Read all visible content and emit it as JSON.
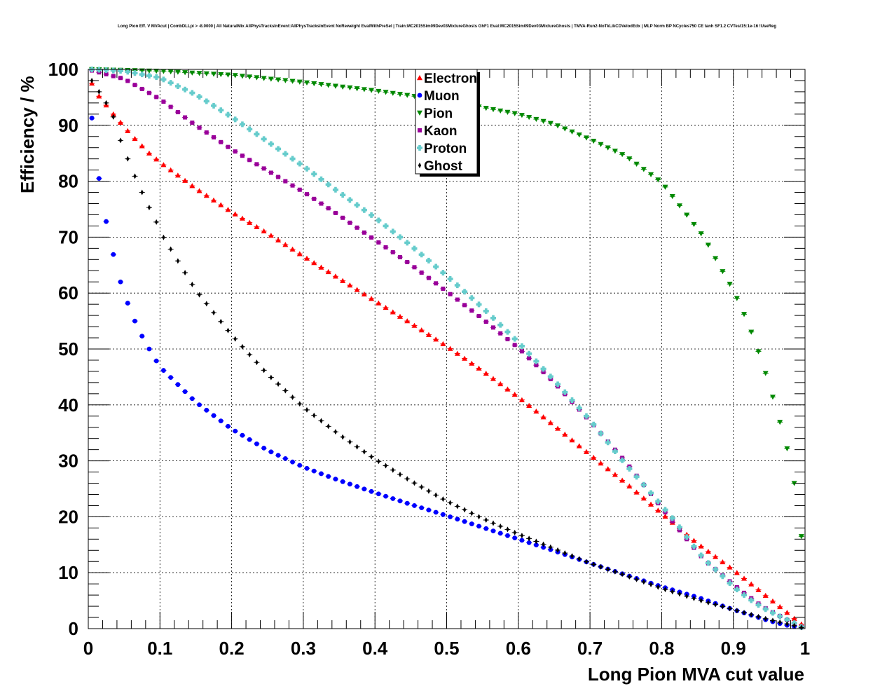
{
  "chart_data": {
    "type": "scatter",
    "title": "Long Pion Eff. V MVAcut | CombDLLpi > -8.0000 | All NaturalMix AllPhysTracksInEvent:AllPhysTracksInEvent NoReweight EvalWithPreSel | Train:MC2015Sim09Dev03MixtureGhosts GhF1 Eval:MC2015Sim09Dev03MixtureGhosts | TMVA-Run2-NoTkLikCDVelodEdx | MLP Norm BP NCycles750 CE tanh SF1.2 CVTest15:1e-16 !UseReg",
    "xlabel": "Long Pion MVA cut value",
    "ylabel": "Efficiency / %",
    "xlim": [
      0,
      1
    ],
    "ylim": [
      0,
      100
    ],
    "x_ticks": [
      "0",
      "0.1",
      "0.2",
      "0.3",
      "0.4",
      "0.5",
      "0.6",
      "0.7",
      "0.8",
      "0.9",
      "1"
    ],
    "y_ticks": [
      "0",
      "10",
      "20",
      "30",
      "40",
      "50",
      "60",
      "70",
      "80",
      "90",
      "100"
    ],
    "grid": true,
    "legend_position": "top-center",
    "x_step": 0.01,
    "x_start": 0.005,
    "series": [
      {
        "name": "Electron",
        "color": "#ff0000",
        "marker": "triangle-up",
        "anchors": [
          [
            0.005,
            97.5
          ],
          [
            0.015,
            95.2
          ],
          [
            0.025,
            93.6
          ],
          [
            0.035,
            92.0
          ],
          [
            0.045,
            90.5
          ],
          [
            0.055,
            89.0
          ],
          [
            0.065,
            87.6
          ],
          [
            0.075,
            86.3
          ],
          [
            0.085,
            85.0
          ],
          [
            0.1,
            83.4
          ],
          [
            0.15,
            78.7
          ],
          [
            0.2,
            74.5
          ],
          [
            0.25,
            70.7
          ],
          [
            0.3,
            66.6
          ],
          [
            0.35,
            62.6
          ],
          [
            0.4,
            58.6
          ],
          [
            0.45,
            54.6
          ],
          [
            0.5,
            50.5
          ],
          [
            0.55,
            46.1
          ],
          [
            0.6,
            41.4
          ],
          [
            0.65,
            36.3
          ],
          [
            0.7,
            31.1
          ],
          [
            0.75,
            26.0
          ],
          [
            0.8,
            20.6
          ],
          [
            0.85,
            15.2
          ],
          [
            0.9,
            10.5
          ],
          [
            0.95,
            5.4
          ],
          [
            0.97,
            3.4
          ],
          [
            0.985,
            1.8
          ],
          [
            0.995,
            0.8
          ]
        ]
      },
      {
        "name": "Muon",
        "color": "#0000ff",
        "marker": "circle",
        "anchors": [
          [
            0.005,
            91.3
          ],
          [
            0.015,
            80.5
          ],
          [
            0.025,
            72.8
          ],
          [
            0.035,
            66.9
          ],
          [
            0.045,
            62.0
          ],
          [
            0.055,
            58.2
          ],
          [
            0.065,
            55.0
          ],
          [
            0.075,
            52.3
          ],
          [
            0.085,
            50.0
          ],
          [
            0.1,
            46.8
          ],
          [
            0.15,
            40.5
          ],
          [
            0.2,
            35.7
          ],
          [
            0.25,
            31.9
          ],
          [
            0.3,
            28.9
          ],
          [
            0.35,
            26.5
          ],
          [
            0.4,
            24.3
          ],
          [
            0.45,
            22.2
          ],
          [
            0.5,
            20.2
          ],
          [
            0.55,
            18.1
          ],
          [
            0.6,
            16.0
          ],
          [
            0.65,
            13.9
          ],
          [
            0.7,
            11.7
          ],
          [
            0.75,
            9.6
          ],
          [
            0.8,
            7.5
          ],
          [
            0.85,
            5.6
          ],
          [
            0.9,
            3.4
          ],
          [
            0.95,
            1.4
          ],
          [
            0.975,
            0.6
          ],
          [
            0.995,
            0.2
          ]
        ]
      },
      {
        "name": "Pion",
        "color": "#008800",
        "marker": "triangle-down",
        "anchors": [
          [
            0.005,
            100.0
          ],
          [
            0.1,
            99.7
          ],
          [
            0.2,
            99.0
          ],
          [
            0.3,
            97.7
          ],
          [
            0.4,
            96.2
          ],
          [
            0.5,
            94.4
          ],
          [
            0.6,
            92.0
          ],
          [
            0.65,
            90.2
          ],
          [
            0.7,
            87.5
          ],
          [
            0.75,
            84.5
          ],
          [
            0.8,
            79.8
          ],
          [
            0.83,
            74.8
          ],
          [
            0.86,
            69.8
          ],
          [
            0.88,
            65.0
          ],
          [
            0.9,
            60.5
          ],
          [
            0.92,
            54.8
          ],
          [
            0.94,
            47.8
          ],
          [
            0.96,
            39.3
          ],
          [
            0.975,
            32.2
          ],
          [
            0.985,
            26.0
          ],
          [
            0.995,
            16.5
          ]
        ]
      },
      {
        "name": "Kaon",
        "color": "#990099",
        "marker": "square",
        "anchors": [
          [
            0.005,
            99.8
          ],
          [
            0.05,
            98.3
          ],
          [
            0.1,
            94.7
          ],
          [
            0.15,
            90.0
          ],
          [
            0.2,
            85.7
          ],
          [
            0.25,
            81.9
          ],
          [
            0.3,
            78.1
          ],
          [
            0.35,
            73.9
          ],
          [
            0.4,
            69.5
          ],
          [
            0.45,
            65.1
          ],
          [
            0.5,
            60.3
          ],
          [
            0.55,
            55.4
          ],
          [
            0.6,
            50.2
          ],
          [
            0.65,
            44.0
          ],
          [
            0.7,
            37.1
          ],
          [
            0.75,
            29.8
          ],
          [
            0.8,
            21.6
          ],
          [
            0.82,
            18.4
          ],
          [
            0.84,
            15.2
          ],
          [
            0.86,
            12.2
          ],
          [
            0.88,
            10.1
          ],
          [
            0.9,
            7.9
          ],
          [
            0.92,
            5.9
          ],
          [
            0.94,
            4.0
          ],
          [
            0.96,
            2.6
          ],
          [
            0.98,
            1.2
          ],
          [
            0.995,
            0.3
          ]
        ]
      },
      {
        "name": "Proton",
        "color": "#66cccc",
        "marker": "cross",
        "anchors": [
          [
            0.005,
            100.0
          ],
          [
            0.05,
            99.7
          ],
          [
            0.1,
            98.5
          ],
          [
            0.15,
            95.5
          ],
          [
            0.2,
            91.5
          ],
          [
            0.25,
            87.1
          ],
          [
            0.3,
            82.7
          ],
          [
            0.35,
            78.0
          ],
          [
            0.4,
            73.5
          ],
          [
            0.45,
            68.5
          ],
          [
            0.5,
            63.1
          ],
          [
            0.55,
            57.4
          ],
          [
            0.6,
            51.2
          ],
          [
            0.65,
            44.4
          ],
          [
            0.7,
            37.3
          ],
          [
            0.75,
            29.3
          ],
          [
            0.78,
            25.0
          ],
          [
            0.8,
            22.0
          ],
          [
            0.82,
            19.0
          ],
          [
            0.84,
            15.5
          ],
          [
            0.86,
            12.3
          ],
          [
            0.88,
            10.0
          ],
          [
            0.9,
            7.5
          ],
          [
            0.92,
            5.5
          ],
          [
            0.94,
            3.8
          ],
          [
            0.96,
            2.5
          ],
          [
            0.98,
            1.3
          ],
          [
            0.995,
            0.3
          ]
        ]
      },
      {
        "name": "Ghost",
        "color": "#000000",
        "marker": "diamond",
        "anchors": [
          [
            0.005,
            98.0
          ],
          [
            0.015,
            96.0
          ],
          [
            0.025,
            94.0
          ],
          [
            0.035,
            91.5
          ],
          [
            0.045,
            87.3
          ],
          [
            0.055,
            84.0
          ],
          [
            0.065,
            80.9
          ],
          [
            0.075,
            78.0
          ],
          [
            0.085,
            75.3
          ],
          [
            0.095,
            72.7
          ],
          [
            0.1,
            71.0
          ],
          [
            0.15,
            60.5
          ],
          [
            0.2,
            52.5
          ],
          [
            0.25,
            45.5
          ],
          [
            0.3,
            39.6
          ],
          [
            0.35,
            34.7
          ],
          [
            0.4,
            30.3
          ],
          [
            0.45,
            26.4
          ],
          [
            0.5,
            22.8
          ],
          [
            0.55,
            19.7
          ],
          [
            0.6,
            16.9
          ],
          [
            0.65,
            14.3
          ],
          [
            0.7,
            11.7
          ],
          [
            0.75,
            9.5
          ],
          [
            0.8,
            7.2
          ],
          [
            0.85,
            5.2
          ],
          [
            0.9,
            3.4
          ],
          [
            0.95,
            1.6
          ],
          [
            0.98,
            0.7
          ],
          [
            0.995,
            0.2
          ]
        ]
      }
    ]
  }
}
